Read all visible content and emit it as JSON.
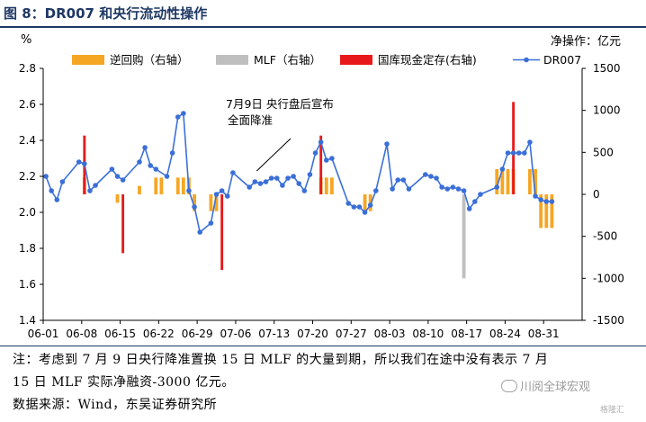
{
  "figure": {
    "title": "图 8：DR007 和央行流动性操作",
    "note_line1": "注：考虑到 7 月 9 日央行降准置换 15 日 MLF 的大量到期，所以我们在途中没有表示 7 月",
    "note_line2": "15 日 MLF 实际净融资-3000 亿元。",
    "source": "数据来源：Wind，东吴证券研究所",
    "watermark": "川阅全球宏观",
    "corner_mark": "格隆汇"
  },
  "colors": {
    "reverse_repo": "#f5a623",
    "mlf": "#bfbfbf",
    "treasury_deposit": "#e8191a",
    "dr007": "#3b6fd8",
    "title": "#1f3864"
  },
  "chart_data": {
    "type": "bar+line",
    "left_axis": {
      "unit": "%",
      "range": [
        1.4,
        2.8
      ],
      "ticks": [
        1.4,
        1.6,
        1.8,
        2.0,
        2.2,
        2.4,
        2.6,
        2.8
      ]
    },
    "right_axis": {
      "unit": "净操作：亿元",
      "range": [
        -1500,
        1500
      ],
      "ticks": [
        -1500,
        -1000,
        -500,
        0,
        500,
        1000,
        1500
      ]
    },
    "x_tick_labels": [
      "06-01",
      "06-08",
      "06-15",
      "06-22",
      "06-29",
      "07-06",
      "07-13",
      "07-20",
      "07-27",
      "08-03",
      "08-10",
      "08-17",
      "08-24",
      "08-31"
    ],
    "annotation": {
      "line1": "7月9日  央行盘后宣布",
      "line2": "全面降准",
      "target_day": 38
    },
    "legend": [
      "逆回购（右轴）",
      "MLF（右轴）",
      "国库现金定存(右轴)",
      "DR007"
    ],
    "series": [
      {
        "name": "逆回购（右轴）",
        "kind": "bar",
        "points": [
          [
            7,
            200
          ],
          [
            13,
            -100
          ],
          [
            17,
            100
          ],
          [
            20,
            200
          ],
          [
            21,
            200
          ],
          [
            24,
            200
          ],
          [
            25,
            200
          ],
          [
            26,
            200
          ],
          [
            27,
            -200
          ],
          [
            30,
            -200
          ],
          [
            31,
            -200
          ],
          [
            50,
            200
          ],
          [
            51,
            200
          ],
          [
            52,
            200
          ],
          [
            58,
            -200
          ],
          [
            59,
            -200
          ],
          [
            82,
            300
          ],
          [
            83,
            300
          ],
          [
            84,
            300
          ],
          [
            85,
            300
          ],
          [
            88,
            300
          ],
          [
            89,
            300
          ],
          [
            90,
            -400
          ],
          [
            91,
            -400
          ],
          [
            92,
            -400
          ]
        ]
      },
      {
        "name": "MLF（右轴）",
        "kind": "bar",
        "points": [
          [
            76,
            -1000
          ]
        ]
      },
      {
        "name": "国库现金定存(右轴)",
        "kind": "bar",
        "points": [
          [
            7,
            700
          ],
          [
            14,
            -700
          ],
          [
            32,
            -900
          ],
          [
            50,
            700
          ],
          [
            85,
            1100
          ]
        ]
      },
      {
        "name": "DR007",
        "kind": "line",
        "points": [
          [
            0,
            2.2
          ],
          [
            1,
            2.12
          ],
          [
            2,
            2.07
          ],
          [
            3,
            2.17
          ],
          [
            6,
            2.28
          ],
          [
            7,
            2.27
          ],
          [
            8,
            2.12
          ],
          [
            9,
            2.15
          ],
          [
            12,
            2.24
          ],
          [
            13,
            2.2
          ],
          [
            14,
            2.18
          ],
          [
            17,
            2.28
          ],
          [
            18,
            2.36
          ],
          [
            19,
            2.26
          ],
          [
            20,
            2.24
          ],
          [
            22,
            2.2
          ],
          [
            23,
            2.33
          ],
          [
            24,
            2.53
          ],
          [
            25,
            2.55
          ],
          [
            26,
            2.12
          ],
          [
            27,
            2.03
          ],
          [
            28,
            1.89
          ],
          [
            30,
            1.94
          ],
          [
            31,
            2.1
          ],
          [
            32,
            2.12
          ],
          [
            33,
            2.09
          ],
          [
            34,
            2.22
          ],
          [
            37,
            2.14
          ],
          [
            38,
            2.17
          ],
          [
            39,
            2.16
          ],
          [
            40,
            2.17
          ],
          [
            41,
            2.19
          ],
          [
            42,
            2.19
          ],
          [
            43,
            2.15
          ],
          [
            44,
            2.19
          ],
          [
            45,
            2.2
          ],
          [
            46,
            2.16
          ],
          [
            47,
            2.12
          ],
          [
            48,
            2.21
          ],
          [
            49,
            2.33
          ],
          [
            50,
            2.39
          ],
          [
            51,
            2.29
          ],
          [
            52,
            2.3
          ],
          [
            55,
            2.05
          ],
          [
            56,
            2.03
          ],
          [
            57,
            2.03
          ],
          [
            58,
            2.0
          ],
          [
            59,
            2.04
          ],
          [
            60,
            2.12
          ],
          [
            62,
            2.38
          ],
          [
            63,
            2.13
          ],
          [
            64,
            2.18
          ],
          [
            65,
            2.18
          ],
          [
            66,
            2.13
          ],
          [
            69,
            2.21
          ],
          [
            70,
            2.2
          ],
          [
            71,
            2.19
          ],
          [
            72,
            2.14
          ],
          [
            73,
            2.13
          ],
          [
            74,
            2.14
          ],
          [
            75,
            2.13
          ],
          [
            76,
            2.12
          ],
          [
            77,
            2.02
          ],
          [
            78,
            2.06
          ],
          [
            79,
            2.1
          ],
          [
            82,
            2.14
          ],
          [
            83,
            2.24
          ],
          [
            84,
            2.33
          ],
          [
            85,
            2.33
          ],
          [
            86,
            2.33
          ],
          [
            87,
            2.33
          ],
          [
            88,
            2.39
          ],
          [
            89,
            2.09
          ],
          [
            90,
            2.07
          ],
          [
            91,
            2.06
          ],
          [
            92,
            2.06
          ]
        ]
      }
    ]
  }
}
